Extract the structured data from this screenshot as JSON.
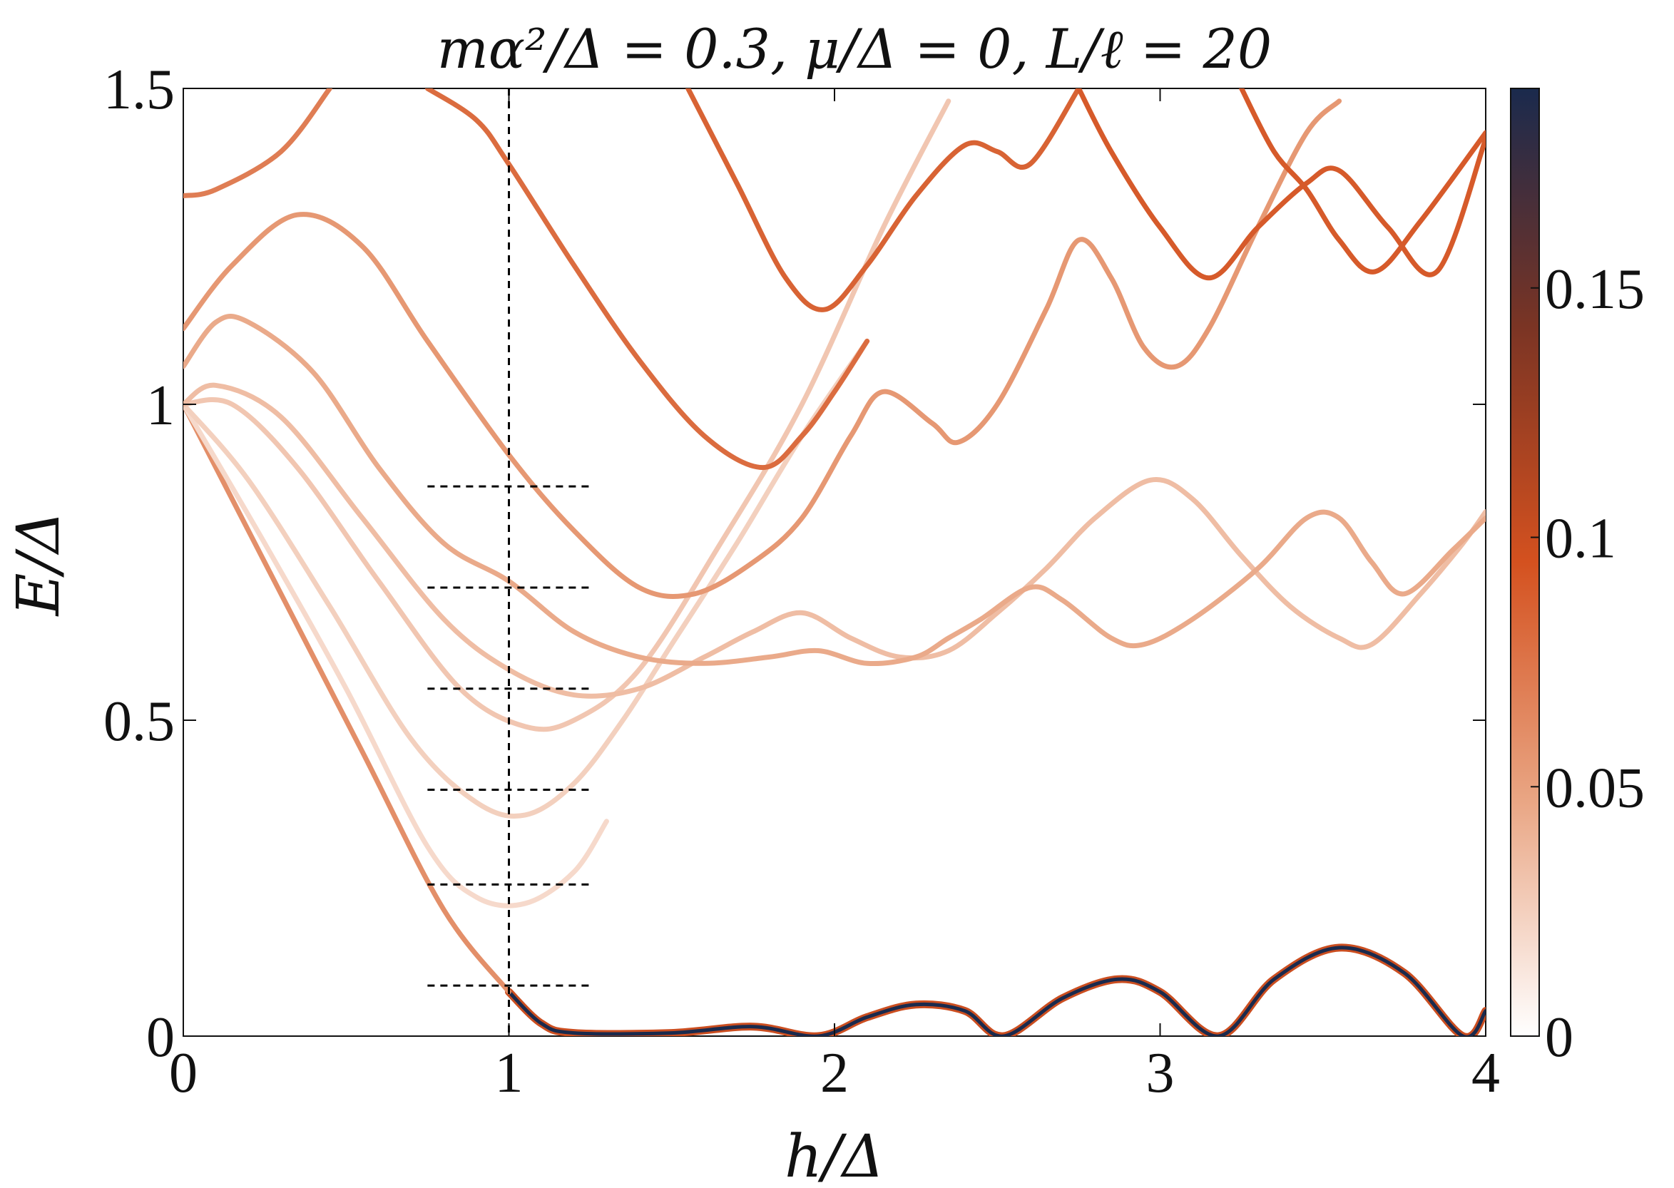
{
  "chart_data": {
    "type": "line",
    "title": "mα²/Δ = 0.3, μ/Δ = 0, L/ℓ = 20",
    "xlabel": "h/Δ",
    "ylabel": "E/Δ",
    "xlim": [
      0,
      4
    ],
    "ylim": [
      0,
      1.5
    ],
    "x_ticks": [
      "0",
      "1",
      "2",
      "3",
      "4"
    ],
    "y_ticks": [
      "0",
      "0.5",
      "1",
      "1.5"
    ],
    "colorbar": {
      "min": 0,
      "max": 0.19,
      "ticks": [
        "0",
        "0.05",
        "0.1",
        "0.15"
      ],
      "colors": [
        "#ffffff",
        "#e9a583",
        "#d4511f",
        "#7a3424",
        "#1a2a4d"
      ]
    },
    "reference_lines": {
      "vertical_x": 1.0,
      "horizontal_y": [
        0.08,
        0.24,
        0.39,
        0.55,
        0.71,
        0.87
      ],
      "horizontal_x_range": [
        0.75,
        1.25
      ]
    },
    "series": [
      {
        "intensity": 0.19,
        "points": [
          [
            1.0,
            0.07
          ],
          [
            1.1,
            0.02
          ],
          [
            1.2,
            0.005
          ],
          [
            1.5,
            0.005
          ],
          [
            1.75,
            0.015
          ],
          [
            1.95,
            0.0
          ],
          [
            2.1,
            0.03
          ],
          [
            2.25,
            0.05
          ],
          [
            2.4,
            0.04
          ],
          [
            2.52,
            0.0
          ],
          [
            2.7,
            0.06
          ],
          [
            2.87,
            0.09
          ],
          [
            3.0,
            0.07
          ],
          [
            3.18,
            0.0
          ],
          [
            3.35,
            0.09
          ],
          [
            3.55,
            0.14
          ],
          [
            3.75,
            0.1
          ],
          [
            3.93,
            0.0
          ],
          [
            4.0,
            0.04
          ]
        ]
      },
      {
        "intensity": 0.06,
        "points": [
          [
            0.0,
            1.0
          ],
          [
            0.3,
            0.7
          ],
          [
            0.55,
            0.45
          ],
          [
            0.8,
            0.2
          ],
          [
            1.0,
            0.07
          ]
        ]
      },
      {
        "intensity": 0.02,
        "points": [
          [
            0.0,
            1.0
          ],
          [
            0.25,
            0.78
          ],
          [
            0.5,
            0.55
          ],
          [
            0.75,
            0.3
          ],
          [
            0.9,
            0.22
          ],
          [
            1.05,
            0.21
          ],
          [
            1.2,
            0.26
          ],
          [
            1.3,
            0.34
          ]
        ]
      },
      {
        "intensity": 0.025,
        "points": [
          [
            0.0,
            1.0
          ],
          [
            0.2,
            0.88
          ],
          [
            0.45,
            0.68
          ],
          [
            0.7,
            0.47
          ],
          [
            0.9,
            0.37
          ],
          [
            1.05,
            0.35
          ],
          [
            1.2,
            0.4
          ],
          [
            1.35,
            0.5
          ],
          [
            1.5,
            0.62
          ],
          [
            1.7,
            0.78
          ],
          [
            1.9,
            0.95
          ],
          [
            2.1,
            1.1
          ]
        ]
      },
      {
        "intensity": 0.03,
        "points": [
          [
            0.0,
            1.0
          ],
          [
            0.15,
            1.0
          ],
          [
            0.35,
            0.9
          ],
          [
            0.6,
            0.72
          ],
          [
            0.85,
            0.55
          ],
          [
            1.05,
            0.49
          ],
          [
            1.2,
            0.5
          ],
          [
            1.4,
            0.58
          ],
          [
            1.65,
            0.78
          ],
          [
            1.9,
            1.0
          ],
          [
            2.15,
            1.28
          ],
          [
            2.35,
            1.48
          ]
        ]
      },
      {
        "intensity": 0.035,
        "points": [
          [
            0.0,
            1.0
          ],
          [
            0.1,
            1.03
          ],
          [
            0.3,
            0.98
          ],
          [
            0.55,
            0.82
          ],
          [
            0.8,
            0.66
          ],
          [
            1.0,
            0.58
          ],
          [
            1.2,
            0.54
          ],
          [
            1.4,
            0.55
          ],
          [
            1.6,
            0.6
          ],
          [
            1.75,
            0.64
          ],
          [
            1.9,
            0.67
          ],
          [
            2.05,
            0.63
          ],
          [
            2.2,
            0.6
          ],
          [
            2.35,
            0.61
          ],
          [
            2.5,
            0.67
          ],
          [
            2.65,
            0.74
          ],
          [
            2.8,
            0.82
          ],
          [
            2.97,
            0.88
          ],
          [
            3.1,
            0.85
          ],
          [
            3.25,
            0.76
          ],
          [
            3.4,
            0.68
          ],
          [
            3.55,
            0.63
          ],
          [
            3.65,
            0.62
          ],
          [
            3.8,
            0.7
          ],
          [
            3.93,
            0.78
          ],
          [
            4.0,
            0.83
          ]
        ]
      },
      {
        "intensity": 0.045,
        "points": [
          [
            0.0,
            1.06
          ],
          [
            0.1,
            1.13
          ],
          [
            0.2,
            1.13
          ],
          [
            0.4,
            1.05
          ],
          [
            0.6,
            0.9
          ],
          [
            0.8,
            0.78
          ],
          [
            1.0,
            0.72
          ],
          [
            1.2,
            0.64
          ],
          [
            1.4,
            0.6
          ],
          [
            1.6,
            0.59
          ],
          [
            1.8,
            0.6
          ],
          [
            1.95,
            0.61
          ],
          [
            2.1,
            0.59
          ],
          [
            2.25,
            0.6
          ],
          [
            2.35,
            0.63
          ],
          [
            2.45,
            0.66
          ],
          [
            2.6,
            0.71
          ],
          [
            2.7,
            0.69
          ],
          [
            2.85,
            0.63
          ],
          [
            2.95,
            0.62
          ],
          [
            3.1,
            0.66
          ],
          [
            3.3,
            0.74
          ],
          [
            3.45,
            0.82
          ],
          [
            3.55,
            0.82
          ],
          [
            3.65,
            0.75
          ],
          [
            3.75,
            0.7
          ],
          [
            3.9,
            0.77
          ],
          [
            4.0,
            0.82
          ]
        ]
      },
      {
        "intensity": 0.055,
        "points": [
          [
            0.0,
            1.12
          ],
          [
            0.15,
            1.22
          ],
          [
            0.35,
            1.3
          ],
          [
            0.55,
            1.25
          ],
          [
            0.75,
            1.1
          ],
          [
            1.0,
            0.92
          ],
          [
            1.2,
            0.8
          ],
          [
            1.4,
            0.71
          ],
          [
            1.57,
            0.7
          ],
          [
            1.75,
            0.75
          ],
          [
            1.9,
            0.82
          ],
          [
            2.05,
            0.95
          ],
          [
            2.15,
            1.02
          ],
          [
            2.3,
            0.97
          ],
          [
            2.38,
            0.94
          ],
          [
            2.5,
            1.0
          ],
          [
            2.65,
            1.15
          ],
          [
            2.75,
            1.26
          ],
          [
            2.85,
            1.2
          ],
          [
            2.95,
            1.09
          ],
          [
            3.05,
            1.06
          ],
          [
            3.15,
            1.12
          ],
          [
            3.3,
            1.28
          ],
          [
            3.45,
            1.43
          ],
          [
            3.55,
            1.48
          ]
        ]
      },
      {
        "intensity": 0.07,
        "points": [
          [
            0.0,
            1.33
          ],
          [
            0.1,
            1.34
          ],
          [
            0.3,
            1.4
          ],
          [
            0.45,
            1.5
          ]
        ]
      },
      {
        "intensity": 0.08,
        "points": [
          [
            0.75,
            1.5
          ],
          [
            0.9,
            1.45
          ],
          [
            1.0,
            1.38
          ],
          [
            1.2,
            1.22
          ],
          [
            1.4,
            1.07
          ],
          [
            1.6,
            0.95
          ],
          [
            1.78,
            0.9
          ],
          [
            1.9,
            0.95
          ],
          [
            2.0,
            1.02
          ],
          [
            2.1,
            1.1
          ]
        ]
      },
      {
        "intensity": 0.085,
        "points": [
          [
            1.55,
            1.5
          ],
          [
            1.7,
            1.35
          ],
          [
            1.85,
            1.2
          ],
          [
            1.97,
            1.15
          ],
          [
            2.1,
            1.22
          ],
          [
            2.25,
            1.33
          ],
          [
            2.4,
            1.41
          ],
          [
            2.5,
            1.4
          ],
          [
            2.6,
            1.38
          ],
          [
            2.75,
            1.5
          ]
        ]
      },
      {
        "intensity": 0.09,
        "points": [
          [
            2.75,
            1.5
          ],
          [
            2.85,
            1.4
          ],
          [
            3.0,
            1.28
          ],
          [
            3.15,
            1.2
          ],
          [
            3.3,
            1.28
          ],
          [
            3.45,
            1.35
          ],
          [
            3.55,
            1.37
          ],
          [
            3.7,
            1.28
          ],
          [
            3.85,
            1.21
          ],
          [
            4.0,
            1.42
          ]
        ]
      },
      {
        "intensity": 0.09,
        "points": [
          [
            3.25,
            1.5
          ],
          [
            3.35,
            1.4
          ],
          [
            3.45,
            1.34
          ],
          [
            3.55,
            1.26
          ],
          [
            3.66,
            1.21
          ],
          [
            3.8,
            1.29
          ],
          [
            4.0,
            1.43
          ]
        ]
      }
    ]
  }
}
